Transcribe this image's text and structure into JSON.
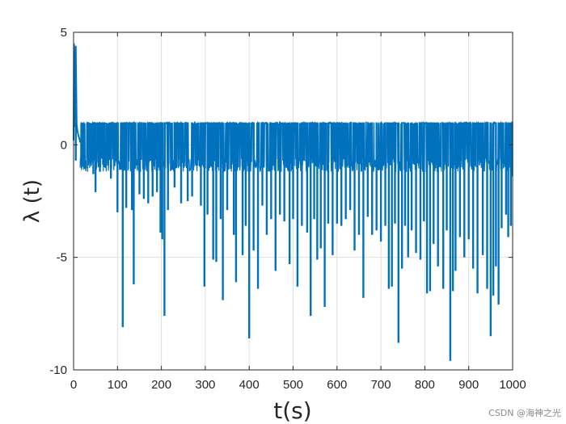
{
  "chart_data": {
    "type": "line",
    "title": "",
    "xlabel": "t(s)",
    "ylabel": "λ (t)",
    "xlim": [
      0,
      1000
    ],
    "ylim": [
      -10,
      5
    ],
    "xticks": [
      0,
      100,
      200,
      300,
      400,
      500,
      600,
      700,
      800,
      900,
      1000
    ],
    "yticks": [
      5,
      0,
      -5,
      -10
    ],
    "xtick_labels": [
      "0",
      "100",
      "200",
      "300",
      "400",
      "500",
      "600",
      "700",
      "800",
      "900",
      "1000"
    ],
    "ytick_labels": [
      "5",
      "0",
      "-5",
      "-10"
    ],
    "grid": true,
    "series": [
      {
        "color": "#0072BD",
        "initial_segment": {
          "x": [
            0,
            1,
            3,
            5,
            7,
            9,
            11,
            13,
            15
          ],
          "y": [
            0.2,
            4.5,
            0.8,
            4.4,
            0.9,
            0.6,
            0.4,
            0.3,
            0.1
          ]
        },
        "band": {
          "upper": 1.0,
          "lower": -0.9
        },
        "dips": [
          [
            5,
            -0.7
          ],
          [
            18,
            -0.6
          ],
          [
            32,
            -0.6
          ],
          [
            45,
            -1.3
          ],
          [
            50,
            -2.1
          ],
          [
            60,
            -1.2
          ],
          [
            70,
            -0.8
          ],
          [
            85,
            -1.5
          ],
          [
            100,
            -3.0
          ],
          [
            108,
            -1.1
          ],
          [
            112,
            -8.1
          ],
          [
            120,
            -2.8
          ],
          [
            133,
            -2.9
          ],
          [
            137,
            -6.2
          ],
          [
            150,
            -2.2
          ],
          [
            160,
            -2.4
          ],
          [
            170,
            -2.6
          ],
          [
            180,
            -2.3
          ],
          [
            190,
            -2.1
          ],
          [
            198,
            -3.9
          ],
          [
            202,
            -4.2
          ],
          [
            207,
            -7.6
          ],
          [
            215,
            -2.9
          ],
          [
            230,
            -1.9
          ],
          [
            245,
            -2.6
          ],
          [
            260,
            -2.5
          ],
          [
            270,
            -2.3
          ],
          [
            290,
            -2.7
          ],
          [
            298,
            -6.3
          ],
          [
            305,
            -3.1
          ],
          [
            318,
            -5.1
          ],
          [
            325,
            -5.2
          ],
          [
            335,
            -3.3
          ],
          [
            340,
            -6.9
          ],
          [
            350,
            -2.9
          ],
          [
            365,
            -4.0
          ],
          [
            370,
            -6.1
          ],
          [
            385,
            -4.9
          ],
          [
            392,
            -3.6
          ],
          [
            400,
            -8.6
          ],
          [
            410,
            -4.7
          ],
          [
            420,
            -6.4
          ],
          [
            430,
            -2.7
          ],
          [
            440,
            -4.0
          ],
          [
            450,
            -3.3
          ],
          [
            460,
            -5.6
          ],
          [
            470,
            -3.1
          ],
          [
            480,
            -3.4
          ],
          [
            492,
            -5.3
          ],
          [
            500,
            -3.3
          ],
          [
            510,
            -6.3
          ],
          [
            520,
            -3.6
          ],
          [
            532,
            -3.9
          ],
          [
            540,
            -7.6
          ],
          [
            548,
            -3.3
          ],
          [
            555,
            -5.1
          ],
          [
            563,
            -4.6
          ],
          [
            572,
            -7.2
          ],
          [
            580,
            -3.5
          ],
          [
            590,
            -4.9
          ],
          [
            600,
            -3.5
          ],
          [
            610,
            -3.6
          ],
          [
            620,
            -3.3
          ],
          [
            630,
            -2.9
          ],
          [
            640,
            -4.7
          ],
          [
            650,
            -4.0
          ],
          [
            660,
            -6.8
          ],
          [
            670,
            -3.2
          ],
          [
            680,
            -4.0
          ],
          [
            690,
            -3.8
          ],
          [
            700,
            -4.3
          ],
          [
            710,
            -3.6
          ],
          [
            718,
            -6.4
          ],
          [
            725,
            -6.3
          ],
          [
            732,
            -3.5
          ],
          [
            740,
            -8.8
          ],
          [
            748,
            -5.5
          ],
          [
            755,
            -3.6
          ],
          [
            762,
            -5.0
          ],
          [
            770,
            -3.8
          ],
          [
            780,
            -4.8
          ],
          [
            790,
            -5.1
          ],
          [
            798,
            -3.4
          ],
          [
            805,
            -6.6
          ],
          [
            812,
            -6.5
          ],
          [
            820,
            -4.4
          ],
          [
            830,
            -5.4
          ],
          [
            842,
            -6.4
          ],
          [
            850,
            -3.8
          ],
          [
            858,
            -9.6
          ],
          [
            864,
            -6.5
          ],
          [
            870,
            -5.6
          ],
          [
            880,
            -4.1
          ],
          [
            890,
            -5.0
          ],
          [
            900,
            -4.2
          ],
          [
            910,
            -5.5
          ],
          [
            920,
            -6.6
          ],
          [
            932,
            -4.9
          ],
          [
            942,
            -6.4
          ],
          [
            950,
            -8.5
          ],
          [
            956,
            -6.7
          ],
          [
            962,
            -5.4
          ],
          [
            968,
            -7.1
          ],
          [
            975,
            -3.7
          ],
          [
            985,
            -3.1
          ],
          [
            990,
            -4.1
          ],
          [
            996,
            -3.6
          ],
          [
            999,
            -1.4
          ]
        ]
      }
    ]
  },
  "watermark": "CSDN @海神之光"
}
